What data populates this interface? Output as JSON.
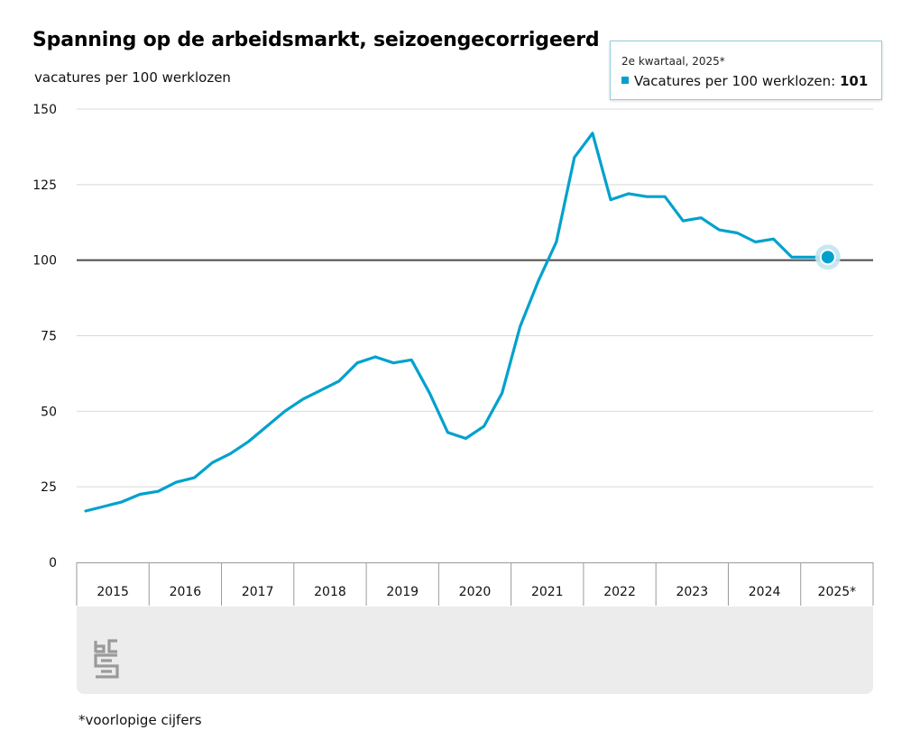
{
  "title": "Spanning op de arbeidsmarkt, seizoengecorrigeerd",
  "subtitle": "vacatures per 100 werklozen",
  "tooltip": {
    "period": "2e kwartaal, 2025*",
    "series_label": "Vacatures per 100 werklozen:",
    "value": "101"
  },
  "footnote": "*voorlopige cijfers",
  "logo_icon": "cbs-logo-icon",
  "colors": {
    "line": "#00a1cd",
    "reference_line": "#555555",
    "grid": "#d9d9d9",
    "footer": "#ececec"
  },
  "chart_data": {
    "type": "line",
    "title": "Spanning op de arbeidsmarkt, seizoengecorrigeerd",
    "ylabel": "vacatures per 100 werklozen",
    "xlabel": "",
    "ylim": [
      0,
      150
    ],
    "yticks": [
      "0",
      "25",
      "50",
      "75",
      "100",
      "125",
      "150"
    ],
    "categories": [
      "2015",
      "2016",
      "2017",
      "2018",
      "2019",
      "2020",
      "2021",
      "2022",
      "2023",
      "2024",
      "2025*"
    ],
    "reference_value": 100,
    "grid": true,
    "series": [
      {
        "values": [
          17,
          18.5,
          20,
          22.5,
          23.5,
          26.5,
          28,
          33,
          36,
          40,
          45,
          50,
          54,
          57,
          60,
          66,
          68,
          66,
          67,
          56,
          43,
          41,
          45,
          56,
          78,
          93,
          106,
          134,
          142,
          120,
          122,
          121,
          121,
          113,
          114,
          110,
          109,
          106,
          107,
          101,
          101
        ],
        "x": [
          "2015 Q1",
          "2015 Q2",
          "2015 Q3",
          "2015 Q4",
          "2016 Q1",
          "2016 Q2",
          "2016 Q3",
          "2016 Q4",
          "2017 Q1",
          "2017 Q2",
          "2017 Q3",
          "2017 Q4",
          "2018 Q1",
          "2018 Q2",
          "2018 Q3",
          "2018 Q4",
          "2019 Q1",
          "2019 Q2",
          "2019 Q3",
          "2019 Q4",
          "2020 Q1",
          "2020 Q2",
          "2020 Q3",
          "2020 Q4",
          "2021 Q1",
          "2021 Q2",
          "2021 Q3",
          "2021 Q4",
          "2022 Q1",
          "2022 Q2",
          "2022 Q3",
          "2022 Q4",
          "2023 Q1",
          "2023 Q2",
          "2023 Q3",
          "2023 Q4",
          "2024 Q1",
          "2024 Q2",
          "2024 Q3",
          "2024 Q4",
          "2025 Q2"
        ],
        "highlight": {
          "x": "2025 Q2",
          "value": 101
        }
      }
    ]
  }
}
